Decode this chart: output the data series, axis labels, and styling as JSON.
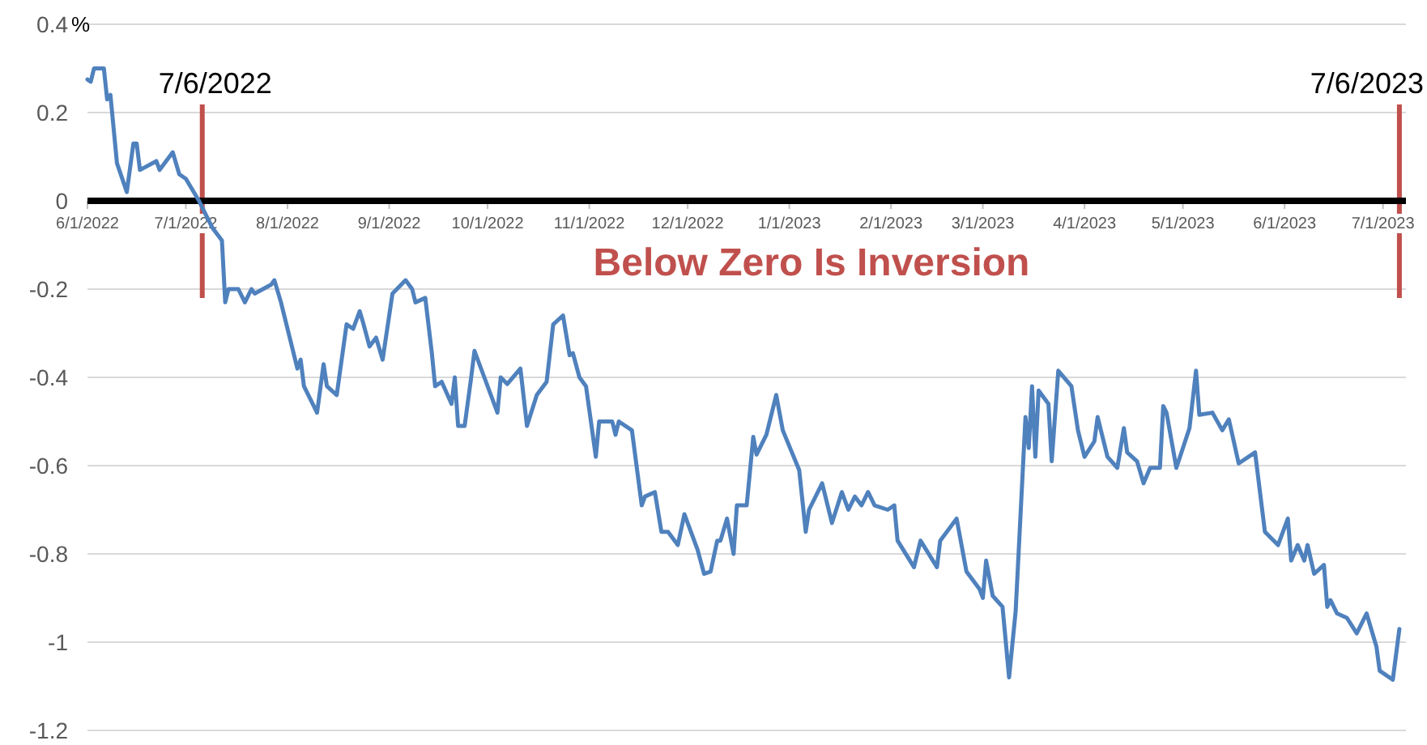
{
  "chart_data": {
    "type": "line",
    "ylabel": "%",
    "annotations": [
      "Below Zero Is Inversion"
    ],
    "xlim": [
      "2022-06-01",
      "2023-07-08"
    ],
    "xticks": [
      {
        "value": "2022-06-01",
        "label": "6/1/2022"
      },
      {
        "value": "2022-07-01",
        "label": "7/1/2022"
      },
      {
        "value": "2022-08-01",
        "label": "8/1/2022"
      },
      {
        "value": "2022-09-01",
        "label": "9/1/2022"
      },
      {
        "value": "2022-10-01",
        "label": "10/1/2022"
      },
      {
        "value": "2022-11-01",
        "label": "11/1/2022"
      },
      {
        "value": "2022-12-01",
        "label": "12/1/2022"
      },
      {
        "value": "2023-01-01",
        "label": "1/1/2023"
      },
      {
        "value": "2023-02-01",
        "label": "2/1/2023"
      },
      {
        "value": "2023-03-01",
        "label": "3/1/2023"
      },
      {
        "value": "2023-04-01",
        "label": "4/1/2023"
      },
      {
        "value": "2023-05-01",
        "label": "5/1/2023"
      },
      {
        "value": "2023-06-01",
        "label": "6/1/2023"
      },
      {
        "value": "2023-07-01",
        "label": "7/1/2023"
      }
    ],
    "ylim": [
      -1.2,
      0.4
    ],
    "yticks": [
      -1.2,
      -1,
      -0.8,
      -0.6,
      -0.4,
      -0.2,
      0,
      0.2,
      0.4
    ],
    "grid": "y",
    "marker": "none",
    "line_style": "solid",
    "ref_lines": [
      {
        "axis": "x",
        "value": "2022-07-06",
        "label": "7/6/2022",
        "color": "#c0504d"
      },
      {
        "axis": "x",
        "value": "2023-07-06",
        "label": "7/6/2023",
        "color": "#c0504d"
      }
    ],
    "x": [
      "2022-06-01",
      "2022-06-02",
      "2022-06-03",
      "2022-06-06",
      "2022-06-07",
      "2022-06-08",
      "2022-06-10",
      "2022-06-13",
      "2022-06-15",
      "2022-06-16",
      "2022-06-17",
      "2022-06-22",
      "2022-06-23",
      "2022-06-27",
      "2022-06-29",
      "2022-07-01",
      "2022-07-05",
      "2022-07-09",
      "2022-07-12",
      "2022-07-13",
      "2022-07-14",
      "2022-07-17",
      "2022-07-19",
      "2022-07-21",
      "2022-07-22",
      "2022-07-27",
      "2022-07-28",
      "2022-07-30",
      "2022-08-02",
      "2022-08-04",
      "2022-08-05",
      "2022-08-06",
      "2022-08-10",
      "2022-08-12",
      "2022-08-13",
      "2022-08-16",
      "2022-08-19",
      "2022-08-21",
      "2022-08-23",
      "2022-08-24",
      "2022-08-26",
      "2022-08-28",
      "2022-08-30",
      "2022-09-02",
      "2022-09-06",
      "2022-09-08",
      "2022-09-09",
      "2022-09-12",
      "2022-09-14",
      "2022-09-15",
      "2022-09-17",
      "2022-09-20",
      "2022-09-21",
      "2022-09-22",
      "2022-09-24",
      "2022-09-26",
      "2022-09-27",
      "2022-09-30",
      "2022-10-04",
      "2022-10-05",
      "2022-10-07",
      "2022-10-11",
      "2022-10-13",
      "2022-10-16",
      "2022-10-19",
      "2022-10-21",
      "2022-10-24",
      "2022-10-26",
      "2022-10-27",
      "2022-10-29",
      "2022-10-31",
      "2022-11-03",
      "2022-11-04",
      "2022-11-08",
      "2022-11-09",
      "2022-11-10",
      "2022-11-14",
      "2022-11-17",
      "2022-11-18",
      "2022-11-21",
      "2022-11-23",
      "2022-11-25",
      "2022-11-28",
      "2022-11-30",
      "2022-12-04",
      "2022-12-06",
      "2022-12-08",
      "2022-12-10",
      "2022-12-11",
      "2022-12-13",
      "2022-12-15",
      "2022-12-16",
      "2022-12-19",
      "2022-12-21",
      "2022-12-22",
      "2022-12-25",
      "2022-12-28",
      "2022-12-30",
      "2023-01-04",
      "2023-01-06",
      "2023-01-07",
      "2023-01-11",
      "2023-01-14",
      "2023-01-17",
      "2023-01-19",
      "2023-01-21",
      "2023-01-23",
      "2023-01-25",
      "2023-01-27",
      "2023-01-31",
      "2023-02-02",
      "2023-02-03",
      "2023-02-08",
      "2023-02-10",
      "2023-02-15",
      "2023-02-16",
      "2023-02-21",
      "2023-02-24",
      "2023-02-28",
      "2023-03-01",
      "2023-03-02",
      "2023-03-04",
      "2023-03-07",
      "2023-03-09",
      "2023-03-11",
      "2023-03-14",
      "2023-03-15",
      "2023-03-16",
      "2023-03-17",
      "2023-03-18",
      "2023-03-21",
      "2023-03-22",
      "2023-03-24",
      "2023-03-28",
      "2023-03-30",
      "2023-04-01",
      "2023-04-04",
      "2023-04-05",
      "2023-04-08",
      "2023-04-11",
      "2023-04-13",
      "2023-04-14",
      "2023-04-17",
      "2023-04-19",
      "2023-04-21",
      "2023-04-24",
      "2023-04-25",
      "2023-04-26",
      "2023-04-29",
      "2023-05-03",
      "2023-05-05",
      "2023-05-06",
      "2023-05-10",
      "2023-05-13",
      "2023-05-15",
      "2023-05-18",
      "2023-05-23",
      "2023-05-26",
      "2023-05-30",
      "2023-06-02",
      "2023-06-03",
      "2023-06-05",
      "2023-06-07",
      "2023-06-08",
      "2023-06-10",
      "2023-06-13",
      "2023-06-14",
      "2023-06-15",
      "2023-06-17",
      "2023-06-20",
      "2023-06-23",
      "2023-06-26",
      "2023-06-29",
      "2023-06-30",
      "2023-07-04",
      "2023-07-06"
    ],
    "series": [
      {
        "color": "#4f81bd",
        "values": [
          0.275,
          0.27,
          0.3,
          0.3,
          0.23,
          0.24,
          0.085,
          0.02,
          0.13,
          0.13,
          0.07,
          0.09,
          0.07,
          0.11,
          0.06,
          0.05,
          0.0,
          -0.06,
          -0.09,
          -0.23,
          -0.2,
          -0.2,
          -0.23,
          -0.2,
          -0.21,
          -0.19,
          -0.18,
          -0.23,
          -0.32,
          -0.38,
          -0.36,
          -0.42,
          -0.48,
          -0.37,
          -0.42,
          -0.44,
          -0.28,
          -0.29,
          -0.25,
          -0.275,
          -0.33,
          -0.31,
          -0.36,
          -0.21,
          -0.18,
          -0.2,
          -0.23,
          -0.22,
          -0.345,
          -0.42,
          -0.41,
          -0.46,
          -0.4,
          -0.51,
          -0.51,
          -0.4,
          -0.34,
          -0.4,
          -0.48,
          -0.4,
          -0.415,
          -0.38,
          -0.51,
          -0.44,
          -0.41,
          -0.28,
          -0.26,
          -0.35,
          -0.345,
          -0.4,
          -0.42,
          -0.58,
          -0.5,
          -0.5,
          -0.53,
          -0.5,
          -0.52,
          -0.69,
          -0.67,
          -0.66,
          -0.75,
          -0.75,
          -0.78,
          -0.71,
          -0.79,
          -0.845,
          -0.84,
          -0.77,
          -0.77,
          -0.72,
          -0.8,
          -0.69,
          -0.69,
          -0.535,
          -0.575,
          -0.53,
          -0.44,
          -0.52,
          -0.61,
          -0.75,
          -0.7,
          -0.64,
          -0.73,
          -0.66,
          -0.7,
          -0.67,
          -0.69,
          -0.66,
          -0.69,
          -0.7,
          -0.69,
          -0.77,
          -0.83,
          -0.77,
          -0.83,
          -0.77,
          -0.72,
          -0.84,
          -0.88,
          -0.9,
          -0.815,
          -0.895,
          -0.92,
          -1.08,
          -0.93,
          -0.49,
          -0.56,
          -0.42,
          -0.58,
          -0.43,
          -0.46,
          -0.59,
          -0.385,
          -0.42,
          -0.52,
          -0.58,
          -0.545,
          -0.49,
          -0.58,
          -0.605,
          -0.515,
          -0.57,
          -0.59,
          -0.64,
          -0.605,
          -0.605,
          -0.465,
          -0.48,
          -0.605,
          -0.515,
          -0.385,
          -0.485,
          -0.48,
          -0.52,
          -0.495,
          -0.595,
          -0.57,
          -0.75,
          -0.78,
          -0.72,
          -0.815,
          -0.78,
          -0.815,
          -0.78,
          -0.845,
          -0.825,
          -0.92,
          -0.905,
          -0.935,
          -0.945,
          -0.98,
          -0.935,
          -1.01,
          -1.065,
          -1.085,
          -0.97
        ]
      }
    ]
  }
}
